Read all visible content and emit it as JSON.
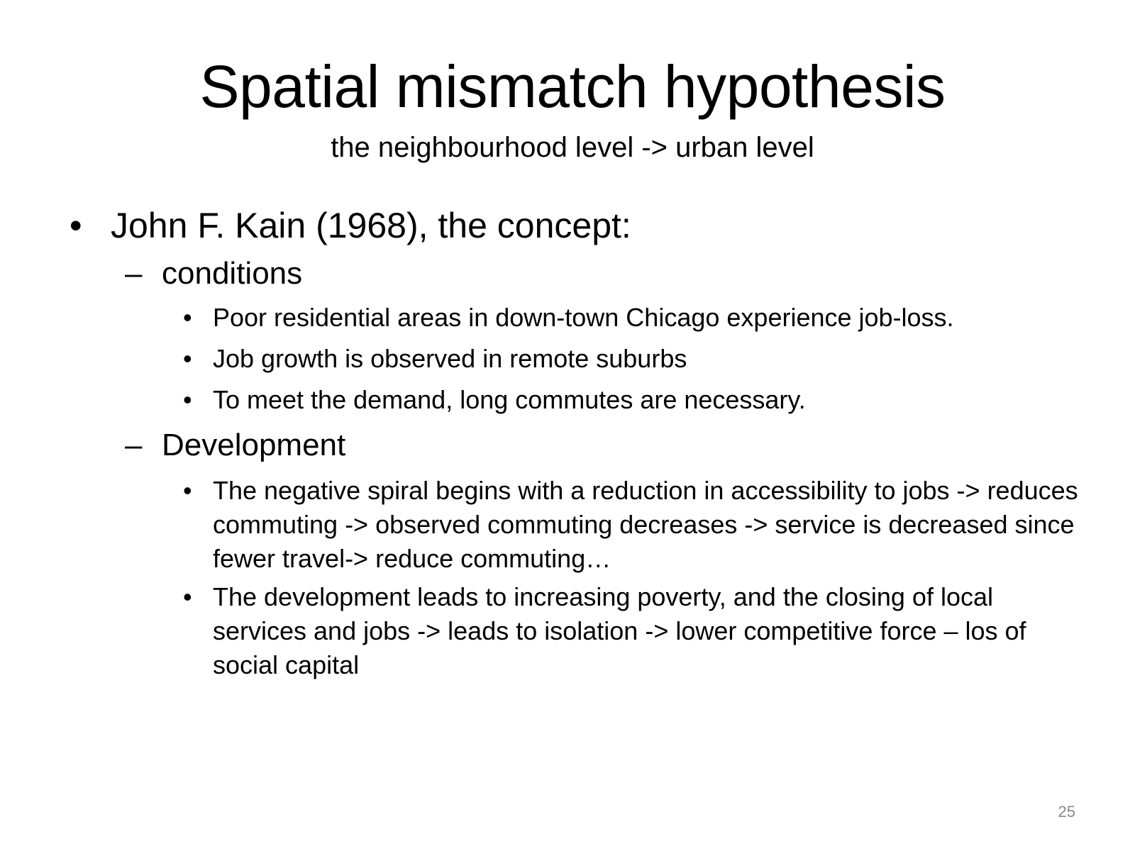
{
  "slide": {
    "title": "Spatial mismatch hypothesis",
    "subtitle": "the neighbourhood level -> urban level",
    "bullet_marker": "•",
    "dash_marker": "–",
    "main_bullet": "John F. Kain (1968), the concept:",
    "sections": [
      {
        "heading": "conditions",
        "items": [
          "Poor residential areas in down-town Chicago experience job-loss.",
          "Job growth is observed in remote suburbs",
          "To meet the demand, long commutes are necessary."
        ]
      },
      {
        "heading": "Development",
        "items": [
          "The negative spiral begins with a reduction in accessibility to jobs -> reduces commuting -> observed commuting decreases -> service is decreased since fewer travel-> reduce commuting…",
          "The development leads to increasing poverty, and the closing of local services and jobs -> leads to isolation -> lower competitive force – los of social capital"
        ]
      }
    ],
    "page_number": "25"
  }
}
